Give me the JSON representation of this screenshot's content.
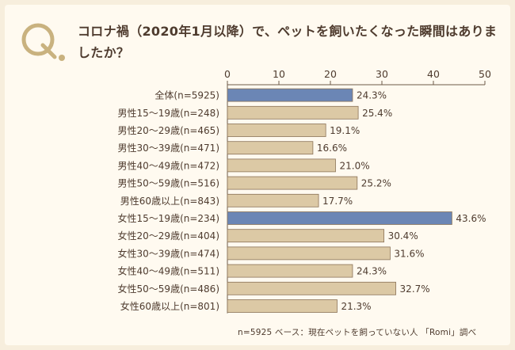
{
  "title": "コロナ禍（2020年1月以降）で、ペットを飼いたくなった瞬間はありましたか？",
  "q_letter": "Q",
  "footer": "n=5925 ベース：現在ペットを飼っていない人 「Romi」調べ",
  "colors": {
    "bar_default": "#dcc9a5",
    "bar_highlight": "#6b86b5",
    "bar_stroke": "#8a7358",
    "q_mark": "#c9b27f"
  },
  "chart_data": {
    "type": "bar",
    "orientation": "horizontal",
    "xlim": [
      0,
      50
    ],
    "xticks": [
      0,
      10,
      20,
      30,
      40,
      50
    ],
    "unit": "%",
    "categories": [
      "全体(n=5925)",
      "男性15～19歳(n=248)",
      "男性20～29歳(n=465)",
      "男性30～39歳(n=471)",
      "男性40～49歳(n=472)",
      "男性50～59歳(n=516)",
      "男性60歳以上(n=843)",
      "女性15～19歳(n=234)",
      "女性20～29歳(n=404)",
      "女性30～39歳(n=474)",
      "女性40～49歳(n=511)",
      "女性50～59歳(n=486)",
      "女性60歳以上(n=801)"
    ],
    "values": [
      24.3,
      25.4,
      19.1,
      16.6,
      21.0,
      25.2,
      17.7,
      43.6,
      30.4,
      31.6,
      24.3,
      32.7,
      21.3
    ],
    "value_labels": [
      "24.3%",
      "25.4%",
      "19.1%",
      "16.6%",
      "21.0%",
      "25.2%",
      "17.7%",
      "43.6%",
      "30.4%",
      "31.6%",
      "24.3%",
      "32.7%",
      "21.3%"
    ],
    "highlighted": [
      true,
      false,
      false,
      false,
      false,
      false,
      false,
      true,
      false,
      false,
      false,
      false,
      false
    ],
    "grid": false
  }
}
